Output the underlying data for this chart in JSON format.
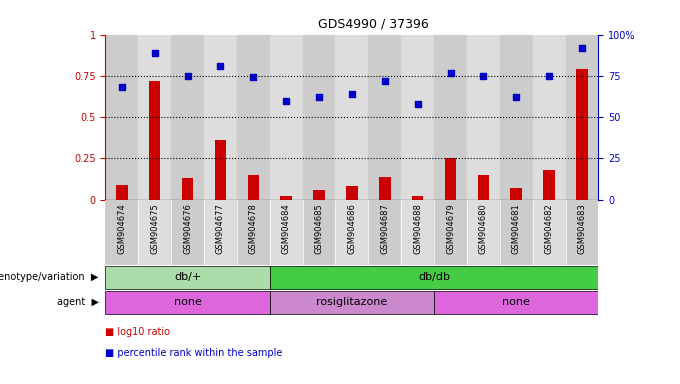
{
  "title": "GDS4990 / 37396",
  "samples": [
    "GSM904674",
    "GSM904675",
    "GSM904676",
    "GSM904677",
    "GSM904678",
    "GSM904684",
    "GSM904685",
    "GSM904686",
    "GSM904687",
    "GSM904688",
    "GSM904679",
    "GSM904680",
    "GSM904681",
    "GSM904682",
    "GSM904683"
  ],
  "log10_ratio": [
    0.09,
    0.72,
    0.13,
    0.36,
    0.15,
    0.02,
    0.06,
    0.08,
    0.14,
    0.02,
    0.25,
    0.15,
    0.07,
    0.18,
    0.79
  ],
  "percentile_rank": [
    0.68,
    0.89,
    0.75,
    0.81,
    0.74,
    0.6,
    0.62,
    0.64,
    0.72,
    0.58,
    0.77,
    0.75,
    0.62,
    0.75,
    0.92
  ],
  "bar_color": "#cc0000",
  "dot_color": "#0000cc",
  "genotype_groups": [
    {
      "label": "db/+",
      "start": 0,
      "end": 4,
      "color": "#aaddaa"
    },
    {
      "label": "db/db",
      "start": 5,
      "end": 14,
      "color": "#44cc44"
    }
  ],
  "agent_groups": [
    {
      "label": "none",
      "start": 0,
      "end": 4,
      "color": "#dd66dd"
    },
    {
      "label": "rosiglitazone",
      "start": 5,
      "end": 9,
      "color": "#cc88cc"
    },
    {
      "label": "none",
      "start": 10,
      "end": 14,
      "color": "#dd66dd"
    }
  ],
  "legend_items": [
    {
      "color": "#cc0000",
      "label": "log10 ratio"
    },
    {
      "color": "#0000cc",
      "label": "percentile rank within the sample"
    }
  ],
  "ylim_left": [
    0,
    1.0
  ],
  "ylim_right": [
    0,
    100
  ],
  "yticks_left": [
    0,
    0.25,
    0.5,
    0.75,
    1.0
  ],
  "ytick_labels_left": [
    "0",
    "0.25",
    "0.5",
    "0.75",
    "1"
  ],
  "yticks_right": [
    0,
    25,
    50,
    75,
    100
  ],
  "ytick_labels_right": [
    "0",
    "25",
    "50",
    "75",
    "100%"
  ],
  "dotted_lines": [
    0.25,
    0.5,
    0.75
  ],
  "background_color": "#ffffff",
  "col_colors": [
    "#cccccc",
    "#dddddd"
  ],
  "bar_width": 0.35
}
